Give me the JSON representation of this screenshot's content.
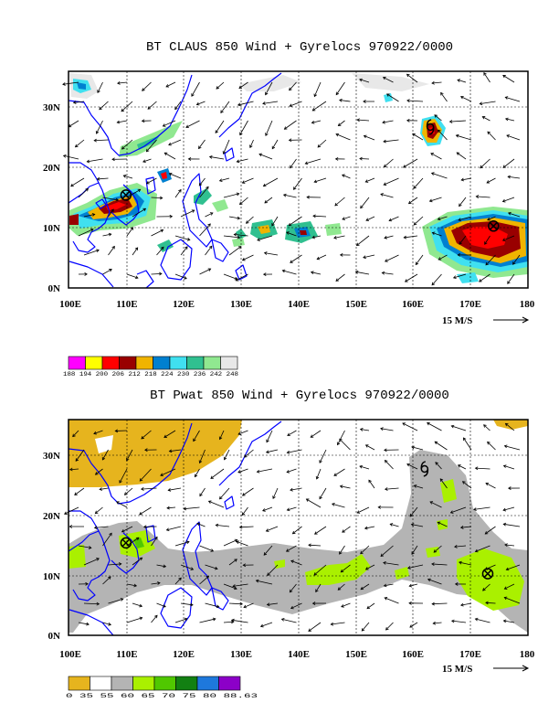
{
  "top_panel": {
    "title": "BT CLAUS 850 Wind + Gyrelocs 970922/0000",
    "lon_labels": [
      "100E",
      "110E",
      "120E",
      "130E",
      "140E",
      "150E",
      "160E",
      "170E",
      "180"
    ],
    "lat_labels": [
      "30N",
      "20N",
      "10N",
      "0N"
    ],
    "vector_ref": "15 M/S",
    "colorbar": {
      "labels": [
        "188",
        "194",
        "200",
        "206",
        "212",
        "218",
        "224",
        "230",
        "236",
        "242",
        "248"
      ],
      "label_text": "188 194 200 206 212 218 224 230 236 242 248"
    },
    "colorbar_colors": [
      "#ff00ff",
      "#ffff00",
      "#ff0000",
      "#990000",
      "#f0b400",
      "#0080d0",
      "#40e0f0",
      "#30c090",
      "#90e890",
      "#e8e8e8"
    ],
    "gyre_markers": [
      {
        "type": "circle-x",
        "lon": 110,
        "lat": 15
      },
      {
        "type": "circle-x",
        "lon": 174,
        "lat": 10
      },
      {
        "type": "cyclone",
        "lon": 163,
        "lat": 26
      }
    ]
  },
  "bottom_panel": {
    "title": "BT Pwat 850 Wind + Gyrelocs 970922/0000",
    "lon_labels": [
      "100E",
      "110E",
      "120E",
      "130E",
      "140E",
      "150E",
      "160E",
      "170E",
      "180"
    ],
    "lat_labels": [
      "30N",
      "20N",
      "10N",
      "0N"
    ],
    "vector_ref": "15 M/S",
    "colorbar": {
      "labels": [
        "0",
        "35",
        "55",
        "60",
        "65",
        "70",
        "75",
        "80",
        "88.63"
      ],
      "label_text": "0    35   55   60   65   70   75   80  88.63"
    },
    "colorbar_colors": [
      "#e6b41e",
      "#ffffff",
      "#b4b4b4",
      "#aaf000",
      "#50c800",
      "#128012",
      "#1e78dc",
      "#8c00c8"
    ],
    "gyre_markers": [
      {
        "type": "circle-x",
        "lon": 110,
        "lat": 15
      },
      {
        "type": "circle-x",
        "lon": 173,
        "lat": 10
      },
      {
        "type": "cyclone",
        "lon": 162,
        "lat": 27
      }
    ]
  },
  "colors": {
    "coast": "#0000ff",
    "frame": "#000000"
  }
}
